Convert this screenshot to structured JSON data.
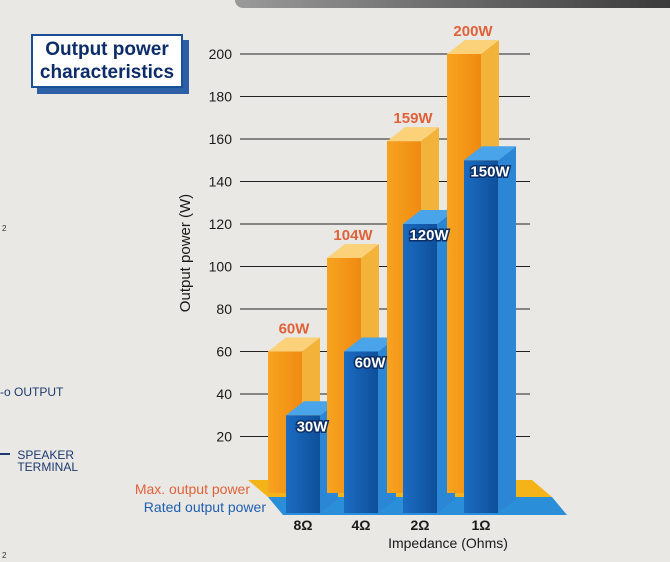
{
  "title": {
    "line1": "Output power",
    "line2": "characteristics"
  },
  "side": {
    "output_label": "OUTPUT",
    "speaker_line1": "SPEAKER",
    "speaker_line2": "TERMINAL",
    "small_mark_1": "2",
    "small_mark_2": "2"
  },
  "colors": {
    "max_series": "#f59a1a",
    "rated_series": "#1f6fc4",
    "max_label": "#e0623a",
    "axis_text": "#1a1a1a",
    "title_navy": "#0d2c6a"
  },
  "chart_data": {
    "type": "bar",
    "categories": [
      "8Ω",
      "4Ω",
      "2Ω",
      "1Ω"
    ],
    "series": [
      {
        "name": "Max. output power",
        "values": [
          60,
          104,
          159,
          200
        ],
        "labels": [
          "60W",
          "104W",
          "159W",
          "200W"
        ]
      },
      {
        "name": "Rated output power",
        "values": [
          30,
          60,
          120,
          150
        ],
        "labels": [
          "30W",
          "60W",
          "120W",
          "150W"
        ]
      }
    ],
    "xlabel": "Impedance (Ohms)",
    "ylabel": "Output power (W)",
    "ylim": [
      0,
      200
    ],
    "yticks": [
      20,
      40,
      60,
      80,
      100,
      120,
      140,
      160,
      180,
      200
    ],
    "grid": true,
    "legend_position": "bottom-left"
  }
}
